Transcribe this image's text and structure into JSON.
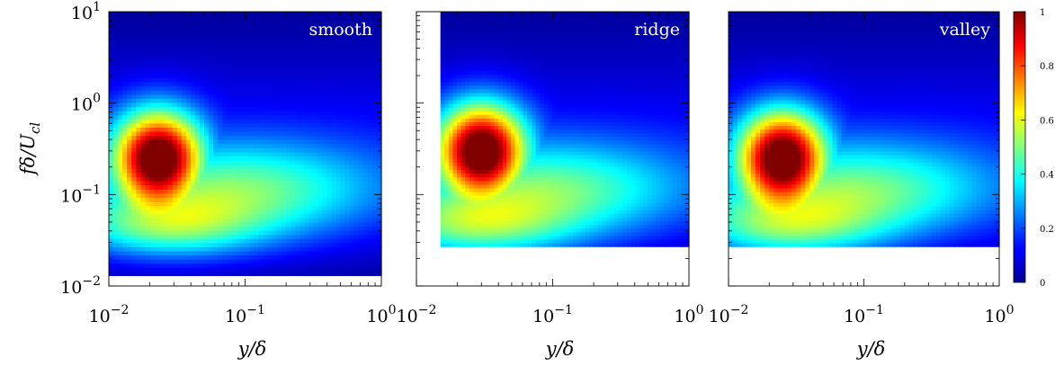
{
  "chart_data": {
    "type": "heatmap",
    "colormap": "jet",
    "ylabel": "fδ/U_cl",
    "ylabel_parts": {
      "main": "fδ/U",
      "sub": "cl"
    },
    "xscale": "log",
    "yscale": "log",
    "xlim": [
      0.01,
      1
    ],
    "ylim": [
      0.01,
      10
    ],
    "x_tick_labels": [
      "10",
      "10"
    ],
    "x_tick_exponents": [
      "−2",
      "−1"
    ],
    "y_tick_labels": [
      "10",
      "10",
      "10",
      "10"
    ],
    "y_tick_exponents": [
      "1",
      "0",
      "−1",
      "−2"
    ],
    "y_tick_values": [
      10,
      1,
      0.1,
      0.01
    ],
    "x_tick_values": [
      0.01,
      0.1,
      1
    ],
    "x_last_tick": {
      "base": "10",
      "exp": "0"
    },
    "colorbar": {
      "range": [
        0,
        1
      ],
      "tick_values": [
        0,
        0.2,
        0.4,
        0.6,
        0.8,
        1
      ],
      "tick_labels": [
        "0",
        "0.2",
        "0.4",
        "0.6",
        "0.8",
        "1"
      ]
    },
    "panels": [
      {
        "name": "smooth",
        "xlabel": "y/δ",
        "data_x_range": [
          0.01,
          1
        ],
        "data_y_range": [
          0.013,
          10
        ],
        "peak": {
          "x": 0.023,
          "y": 0.25
        }
      },
      {
        "name": "ridge",
        "xlabel": "y/δ",
        "data_x_range": [
          0.015,
          1
        ],
        "data_y_range": [
          0.027,
          10
        ],
        "peak": {
          "x": 0.03,
          "y": 0.3
        }
      },
      {
        "name": "valley",
        "xlabel": "y/δ",
        "data_x_range": [
          0.01,
          1
        ],
        "data_y_range": [
          0.027,
          10
        ],
        "peak": {
          "x": 0.025,
          "y": 0.25
        }
      }
    ]
  }
}
